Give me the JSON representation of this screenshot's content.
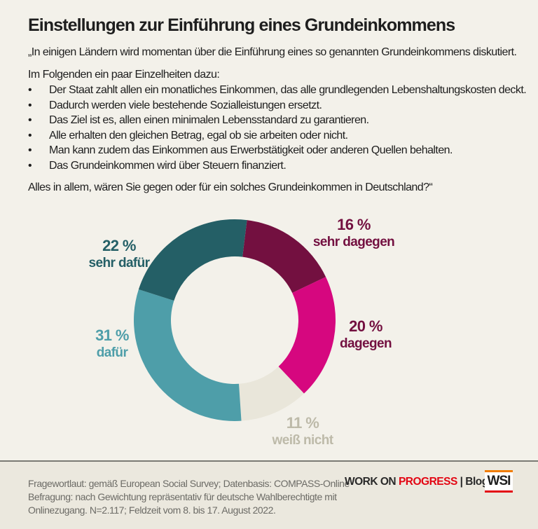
{
  "title": "Einstellungen zur Einführung eines Grundeinkommens",
  "intro": "„In einigen Ländern wird momentan über die Einführung eines so genannten Grundeinkommens diskutiert.",
  "lead": "Im Folgenden ein paar Einzelheiten dazu:",
  "bullets": [
    "Der Staat zahlt allen ein monatliches Einkommen, das alle grundlegenden Lebenshaltungskosten deckt.",
    "Dadurch werden viele bestehende Sozialleistungen ersetzt.",
    "Das Ziel ist es, allen einen minimalen Lebensstandard zu garantieren.",
    "Alle erhalten den gleichen Betrag, egal ob sie arbeiten oder nicht.",
    "Man kann zudem das Einkommen aus Erwerbstätigkeit oder anderen Quellen behalten.",
    "Das Grundeinkommen wird über Steuern finanziert."
  ],
  "bullet_symbol": "•",
  "question": "Alles in allem, wären Sie gegen oder für ein solches Grundeinkommen in Deutschland?“",
  "chart_data": {
    "type": "pie",
    "donut": true,
    "direction": "clockwise",
    "start_angle_deg": 7,
    "unit": "%",
    "slices": [
      {
        "label": "sehr dagegen",
        "value": 16,
        "display": "16 %",
        "color": "#731040",
        "label_color": "#731040"
      },
      {
        "label": "dagegen",
        "value": 20,
        "display": "20 %",
        "color": "#d6077f",
        "label_color": "#731040"
      },
      {
        "label": "weiß nicht",
        "value": 11,
        "display": "11 %",
        "color": "#e9e6da",
        "label_color": "#bdbaa9"
      },
      {
        "label": "dafür",
        "value": 31,
        "display": "31 %",
        "color": "#4e9ea9",
        "label_color": "#4e9ea9"
      },
      {
        "label": "sehr dafür",
        "value": 22,
        "display": "22 %",
        "color": "#245f66",
        "label_color": "#245f66"
      }
    ]
  },
  "footer": {
    "note_lines": [
      "Fragewortlaut: gemäß European Social Survey; Datenbasis: COMPASS-Online",
      "Befragung: nach Gewichtung repräsentativ für deutsche Wahlberechtigte mit",
      "Onlinezugang. N=2.117; Feldzeit vom 8. bis 17. August 2022."
    ],
    "brand_a": "WORK ON ",
    "brand_b": "PROGRESS",
    "brand_sep": " | ",
    "brand_c": "Blog",
    "logo": "WSI"
  }
}
